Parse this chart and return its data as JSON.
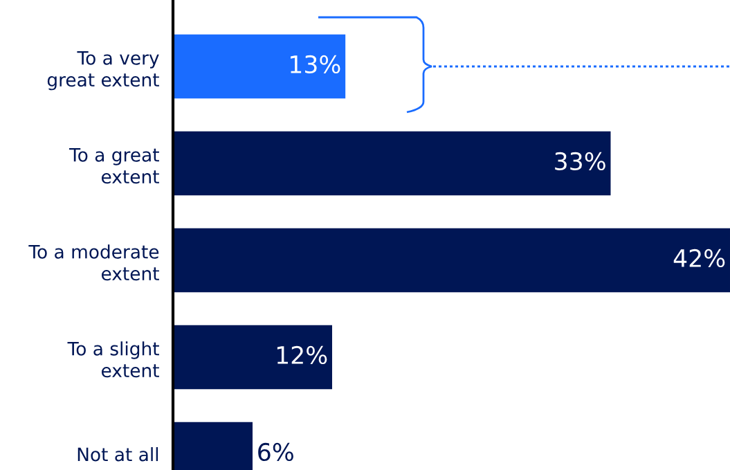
{
  "chart_data": {
    "type": "bar",
    "orientation": "horizontal",
    "categories": [
      "To a very\ngreat extent",
      "To a great\nextent",
      "To a moderate\nextent",
      "To a slight\nextent",
      "Not at all"
    ],
    "values": [
      13,
      33,
      42,
      12,
      6
    ],
    "colors": [
      "#1a6cff",
      "#001655",
      "#001655",
      "#001655",
      "#001655"
    ],
    "value_labels": [
      "13%",
      "33%",
      "42%",
      "12%",
      "6%"
    ],
    "grid": false,
    "legend": false
  }
}
